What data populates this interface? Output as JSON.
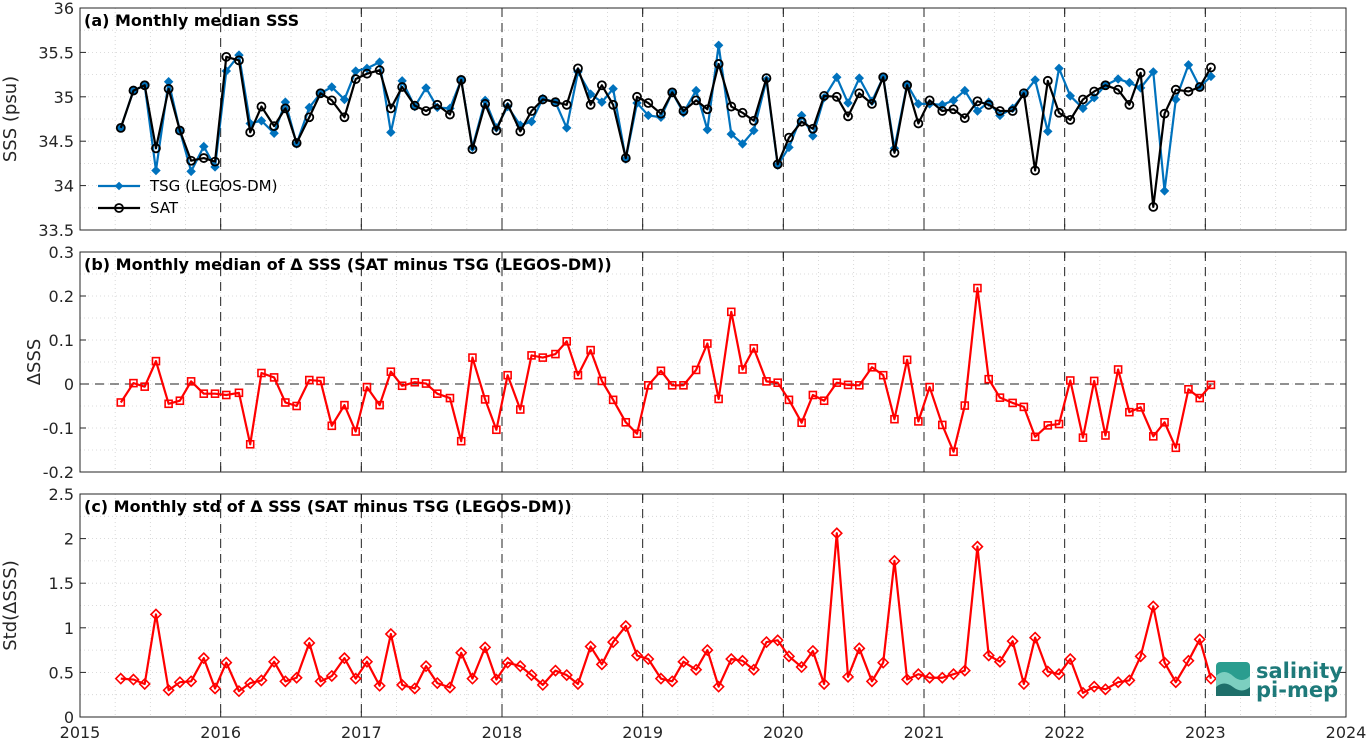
{
  "chart_data": [
    {
      "type": "line",
      "title": "(a) Monthly median SSS",
      "xlabel": "",
      "ylabel": "SSS (psu)",
      "xlim": [
        2015,
        2024
      ],
      "ylim": [
        33.5,
        36
      ],
      "xticks": [
        "2015",
        "2016",
        "2017",
        "2018",
        "2019",
        "2020",
        "2021",
        "2022",
        "2023",
        "2024"
      ],
      "yticks": [
        "33.5",
        "34",
        "34.5",
        "35",
        "35.5",
        "36"
      ],
      "legend_position": "bottom-left",
      "grid": "dotted",
      "year_markers": [
        2016,
        2017,
        2018,
        2019,
        2020,
        2021,
        2022,
        2023
      ],
      "series": [
        {
          "name": "TSG (LEGOS-DM)",
          "color": "#0072BD",
          "marker": "diamond",
          "x": [
            2015.29,
            2015.38,
            2015.46,
            2015.54,
            2015.63,
            2015.71,
            2015.79,
            2015.88,
            2015.96,
            2016.04,
            2016.13,
            2016.21,
            2016.29,
            2016.38,
            2016.46,
            2016.54,
            2016.63,
            2016.71,
            2016.79,
            2016.88,
            2016.96,
            2017.04,
            2017.13,
            2017.21,
            2017.29,
            2017.38,
            2017.46,
            2017.54,
            2017.63,
            2017.71,
            2017.79,
            2017.88,
            2017.96,
            2018.04,
            2018.13,
            2018.21,
            2018.29,
            2018.38,
            2018.46,
            2018.54,
            2018.63,
            2018.71,
            2018.79,
            2018.88,
            2018.96,
            2019.04,
            2019.13,
            2019.21,
            2019.29,
            2019.38,
            2019.46,
            2019.54,
            2019.63,
            2019.71,
            2019.79,
            2019.88,
            2019.96,
            2020.04,
            2020.13,
            2020.21,
            2020.29,
            2020.38,
            2020.46,
            2020.54,
            2020.63,
            2020.71,
            2020.79,
            2020.88,
            2020.96,
            2021.04,
            2021.13,
            2021.21,
            2021.29,
            2021.38,
            2021.46,
            2021.54,
            2021.63,
            2021.71,
            2021.79,
            2021.88,
            2021.96,
            2022.04,
            2022.13,
            2022.21,
            2022.29,
            2022.38,
            2022.46,
            2022.54,
            2022.63,
            2022.71,
            2022.79,
            2022.88,
            2022.96,
            2023.04
          ],
          "values": [
            34.65,
            35.07,
            35.13,
            34.17,
            35.17,
            34.62,
            34.16,
            34.44,
            34.21,
            35.29,
            35.47,
            34.7,
            34.73,
            34.59,
            34.94,
            34.47,
            34.88,
            35.04,
            35.11,
            34.97,
            35.29,
            35.32,
            35.39,
            34.6,
            35.18,
            34.89,
            35.1,
            34.88,
            34.87,
            35.19,
            34.43,
            34.96,
            34.65,
            34.89,
            34.68,
            34.72,
            34.98,
            34.94,
            34.65,
            35.28,
            35.03,
            34.94,
            35.09,
            34.3,
            34.93,
            34.79,
            34.77,
            35.05,
            34.82,
            35.07,
            34.63,
            35.58,
            34.58,
            34.47,
            34.62,
            35.19,
            34.23,
            34.43,
            34.79,
            34.56,
            34.99,
            35.22,
            34.93,
            35.21,
            34.95,
            35.22,
            34.42,
            35.14,
            34.92,
            34.92,
            34.91,
            34.96,
            35.07,
            34.84,
            34.94,
            34.79,
            34.87,
            35.03,
            35.19,
            34.61,
            35.32,
            35.01,
            34.87,
            34.99,
            35.13,
            35.2,
            35.16,
            35.1,
            35.28,
            33.94,
            34.97,
            35.36,
            35.11,
            35.23
          ]
        },
        {
          "name": "SAT",
          "color": "#000000",
          "marker": "circle",
          "x": [
            2015.29,
            2015.38,
            2015.46,
            2015.54,
            2015.63,
            2015.71,
            2015.79,
            2015.88,
            2015.96,
            2016.04,
            2016.13,
            2016.21,
            2016.29,
            2016.38,
            2016.46,
            2016.54,
            2016.63,
            2016.71,
            2016.79,
            2016.88,
            2016.96,
            2017.04,
            2017.13,
            2017.21,
            2017.29,
            2017.38,
            2017.46,
            2017.54,
            2017.63,
            2017.71,
            2017.79,
            2017.88,
            2017.96,
            2018.04,
            2018.13,
            2018.21,
            2018.29,
            2018.38,
            2018.46,
            2018.54,
            2018.63,
            2018.71,
            2018.79,
            2018.88,
            2018.96,
            2019.04,
            2019.13,
            2019.21,
            2019.29,
            2019.38,
            2019.46,
            2019.54,
            2019.63,
            2019.71,
            2019.79,
            2019.88,
            2019.96,
            2020.04,
            2020.13,
            2020.21,
            2020.29,
            2020.38,
            2020.46,
            2020.54,
            2020.63,
            2020.71,
            2020.79,
            2020.88,
            2020.96,
            2021.04,
            2021.13,
            2021.21,
            2021.29,
            2021.38,
            2021.46,
            2021.54,
            2021.63,
            2021.71,
            2021.79,
            2021.88,
            2021.96,
            2022.04,
            2022.13,
            2022.21,
            2022.29,
            2022.38,
            2022.46,
            2022.54,
            2022.63,
            2022.71,
            2022.79,
            2022.88,
            2022.96,
            2023.04
          ],
          "values": [
            34.65,
            35.07,
            35.13,
            34.42,
            35.09,
            34.62,
            34.28,
            34.31,
            34.27,
            35.45,
            35.41,
            34.6,
            34.89,
            34.67,
            34.87,
            34.48,
            34.77,
            35.04,
            34.96,
            34.77,
            35.2,
            35.26,
            35.3,
            34.87,
            35.11,
            34.9,
            34.84,
            34.91,
            34.8,
            35.19,
            34.41,
            34.92,
            34.62,
            34.92,
            34.61,
            34.84,
            34.97,
            34.94,
            34.91,
            35.32,
            34.91,
            35.13,
            34.91,
            34.31,
            35.0,
            34.93,
            34.81,
            35.05,
            34.84,
            34.96,
            34.86,
            35.37,
            34.89,
            34.82,
            34.73,
            35.21,
            34.24,
            34.54,
            34.72,
            34.64,
            35.01,
            35.0,
            34.78,
            35.04,
            34.92,
            35.22,
            34.37,
            35.13,
            34.7,
            34.96,
            34.84,
            34.86,
            34.76,
            34.95,
            34.91,
            34.84,
            34.84,
            35.04,
            34.17,
            35.18,
            34.82,
            34.74,
            34.97,
            35.06,
            35.13,
            35.08,
            34.91,
            35.27,
            33.76,
            34.81,
            35.08,
            35.06,
            35.11,
            35.33
          ]
        }
      ]
    },
    {
      "type": "line",
      "title": "(b) Monthly median of Δ SSS (SAT minus TSG (LEGOS-DM))",
      "xlabel": "",
      "ylabel": "ΔSSS",
      "xlim": [
        2015,
        2024
      ],
      "ylim": [
        -0.2,
        0.3
      ],
      "xticks": [
        "2015",
        "2016",
        "2017",
        "2018",
        "2019",
        "2020",
        "2021",
        "2022",
        "2023",
        "2024"
      ],
      "yticks": [
        "-0.2",
        "-0.1",
        "0",
        "0.1",
        "0.2",
        "0.3"
      ],
      "zero_line": "dashed",
      "grid": "dotted",
      "year_markers": [
        2016,
        2017,
        2018,
        2019,
        2020,
        2021,
        2022,
        2023
      ],
      "series": [
        {
          "color": "#FF0000",
          "marker": "square",
          "x": [
            2015.29,
            2015.38,
            2015.46,
            2015.54,
            2015.63,
            2015.71,
            2015.79,
            2015.88,
            2015.96,
            2016.04,
            2016.13,
            2016.21,
            2016.29,
            2016.38,
            2016.46,
            2016.54,
            2016.63,
            2016.71,
            2016.79,
            2016.88,
            2016.96,
            2017.04,
            2017.13,
            2017.21,
            2017.29,
            2017.38,
            2017.46,
            2017.54,
            2017.63,
            2017.71,
            2017.79,
            2017.88,
            2017.96,
            2018.04,
            2018.13,
            2018.21,
            2018.29,
            2018.38,
            2018.46,
            2018.54,
            2018.63,
            2018.71,
            2018.79,
            2018.88,
            2018.96,
            2019.04,
            2019.13,
            2019.21,
            2019.29,
            2019.38,
            2019.46,
            2019.54,
            2019.63,
            2019.71,
            2019.79,
            2019.88,
            2019.96,
            2020.04,
            2020.13,
            2020.21,
            2020.29,
            2020.38,
            2020.46,
            2020.54,
            2020.63,
            2020.71,
            2020.79,
            2020.88,
            2020.96,
            2021.04,
            2021.13,
            2021.21,
            2021.29,
            2021.38,
            2021.46,
            2021.54,
            2021.63,
            2021.71,
            2021.79,
            2021.88,
            2021.96,
            2022.04,
            2022.13,
            2022.21,
            2022.29,
            2022.38,
            2022.46,
            2022.54,
            2022.63,
            2022.71,
            2022.79,
            2022.88,
            2022.96,
            2023.04
          ],
          "values": [
            -0.042,
            0.002,
            -0.006,
            0.052,
            -0.045,
            -0.038,
            0.006,
            -0.022,
            -0.022,
            -0.025,
            -0.02,
            -0.137,
            0.025,
            0.015,
            -0.042,
            -0.05,
            0.009,
            0.007,
            -0.095,
            -0.048,
            -0.108,
            -0.007,
            -0.048,
            0.028,
            -0.004,
            0.004,
            0.001,
            -0.022,
            -0.032,
            -0.13,
            0.06,
            -0.035,
            -0.104,
            0.02,
            -0.058,
            0.065,
            0.06,
            0.068,
            0.097,
            0.02,
            0.077,
            0.007,
            -0.036,
            -0.087,
            -0.113,
            -0.003,
            0.03,
            -0.003,
            -0.003,
            0.032,
            0.092,
            -0.034,
            0.164,
            0.033,
            0.081,
            0.006,
            0.003,
            -0.036,
            -0.088,
            -0.025,
            -0.038,
            0.003,
            -0.002,
            -0.003,
            0.038,
            0.02,
            -0.08,
            0.055,
            -0.085,
            -0.007,
            -0.093,
            -0.154,
            -0.049,
            0.218,
            0.011,
            -0.031,
            -0.043,
            -0.052,
            -0.12,
            -0.094,
            -0.091,
            0.008,
            -0.122,
            0.007,
            -0.117,
            0.033,
            -0.064,
            -0.053,
            -0.119,
            -0.087,
            -0.145,
            -0.012,
            -0.032,
            -0.002
          ]
        }
      ]
    },
    {
      "type": "line",
      "title": "(c) Monthly std of Δ SSS (SAT minus TSG (LEGOS-DM))",
      "xlabel": "",
      "ylabel": "Std(ΔSSS)",
      "xlim": [
        2015,
        2024
      ],
      "ylim": [
        0,
        2.5
      ],
      "xticks": [
        "2015",
        "2016",
        "2017",
        "2018",
        "2019",
        "2020",
        "2021",
        "2022",
        "2023",
        "2024"
      ],
      "yticks": [
        "0",
        "0.5",
        "1",
        "1.5",
        "2",
        "2.5"
      ],
      "grid": "dotted",
      "year_markers": [
        2016,
        2017,
        2018,
        2019,
        2020,
        2021,
        2022,
        2023
      ],
      "series": [
        {
          "color": "#FF0000",
          "marker": "diamond",
          "x": [
            2015.29,
            2015.38,
            2015.46,
            2015.54,
            2015.63,
            2015.71,
            2015.79,
            2015.88,
            2015.96,
            2016.04,
            2016.13,
            2016.21,
            2016.29,
            2016.38,
            2016.46,
            2016.54,
            2016.63,
            2016.71,
            2016.79,
            2016.88,
            2016.96,
            2017.04,
            2017.13,
            2017.21,
            2017.29,
            2017.38,
            2017.46,
            2017.54,
            2017.63,
            2017.71,
            2017.79,
            2017.88,
            2017.96,
            2018.04,
            2018.13,
            2018.21,
            2018.29,
            2018.38,
            2018.46,
            2018.54,
            2018.63,
            2018.71,
            2018.79,
            2018.88,
            2018.96,
            2019.04,
            2019.13,
            2019.21,
            2019.29,
            2019.38,
            2019.46,
            2019.54,
            2019.63,
            2019.71,
            2019.79,
            2019.88,
            2019.96,
            2020.04,
            2020.13,
            2020.21,
            2020.29,
            2020.38,
            2020.46,
            2020.54,
            2020.63,
            2020.71,
            2020.79,
            2020.88,
            2020.96,
            2021.04,
            2021.13,
            2021.21,
            2021.29,
            2021.38,
            2021.46,
            2021.54,
            2021.63,
            2021.71,
            2021.79,
            2021.88,
            2021.96,
            2022.04,
            2022.13,
            2022.21,
            2022.29,
            2022.38,
            2022.46,
            2022.54,
            2022.63,
            2022.71,
            2022.79,
            2022.88,
            2022.96,
            2023.04
          ],
          "values": [
            0.43,
            0.42,
            0.37,
            1.15,
            0.3,
            0.39,
            0.4,
            0.66,
            0.32,
            0.61,
            0.29,
            0.38,
            0.41,
            0.62,
            0.4,
            0.44,
            0.83,
            0.4,
            0.46,
            0.66,
            0.43,
            0.62,
            0.35,
            0.93,
            0.36,
            0.32,
            0.57,
            0.38,
            0.33,
            0.72,
            0.43,
            0.78,
            0.42,
            0.61,
            0.57,
            0.47,
            0.36,
            0.52,
            0.47,
            0.37,
            0.79,
            0.59,
            0.84,
            1.02,
            0.69,
            0.65,
            0.43,
            0.4,
            0.62,
            0.53,
            0.75,
            0.34,
            0.65,
            0.63,
            0.53,
            0.84,
            0.86,
            0.68,
            0.56,
            0.74,
            0.37,
            2.06,
            0.45,
            0.77,
            0.4,
            0.61,
            1.75,
            0.42,
            0.48,
            0.44,
            0.44,
            0.48,
            0.52,
            1.91,
            0.69,
            0.62,
            0.85,
            0.37,
            0.89,
            0.51,
            0.48,
            0.65,
            0.27,
            0.34,
            0.31,
            0.39,
            0.41,
            0.68,
            1.24,
            0.61,
            0.39,
            0.63,
            0.87,
            0.43
          ]
        }
      ]
    }
  ],
  "logo": {
    "line1": "salinity",
    "line2": "pi-mep"
  }
}
